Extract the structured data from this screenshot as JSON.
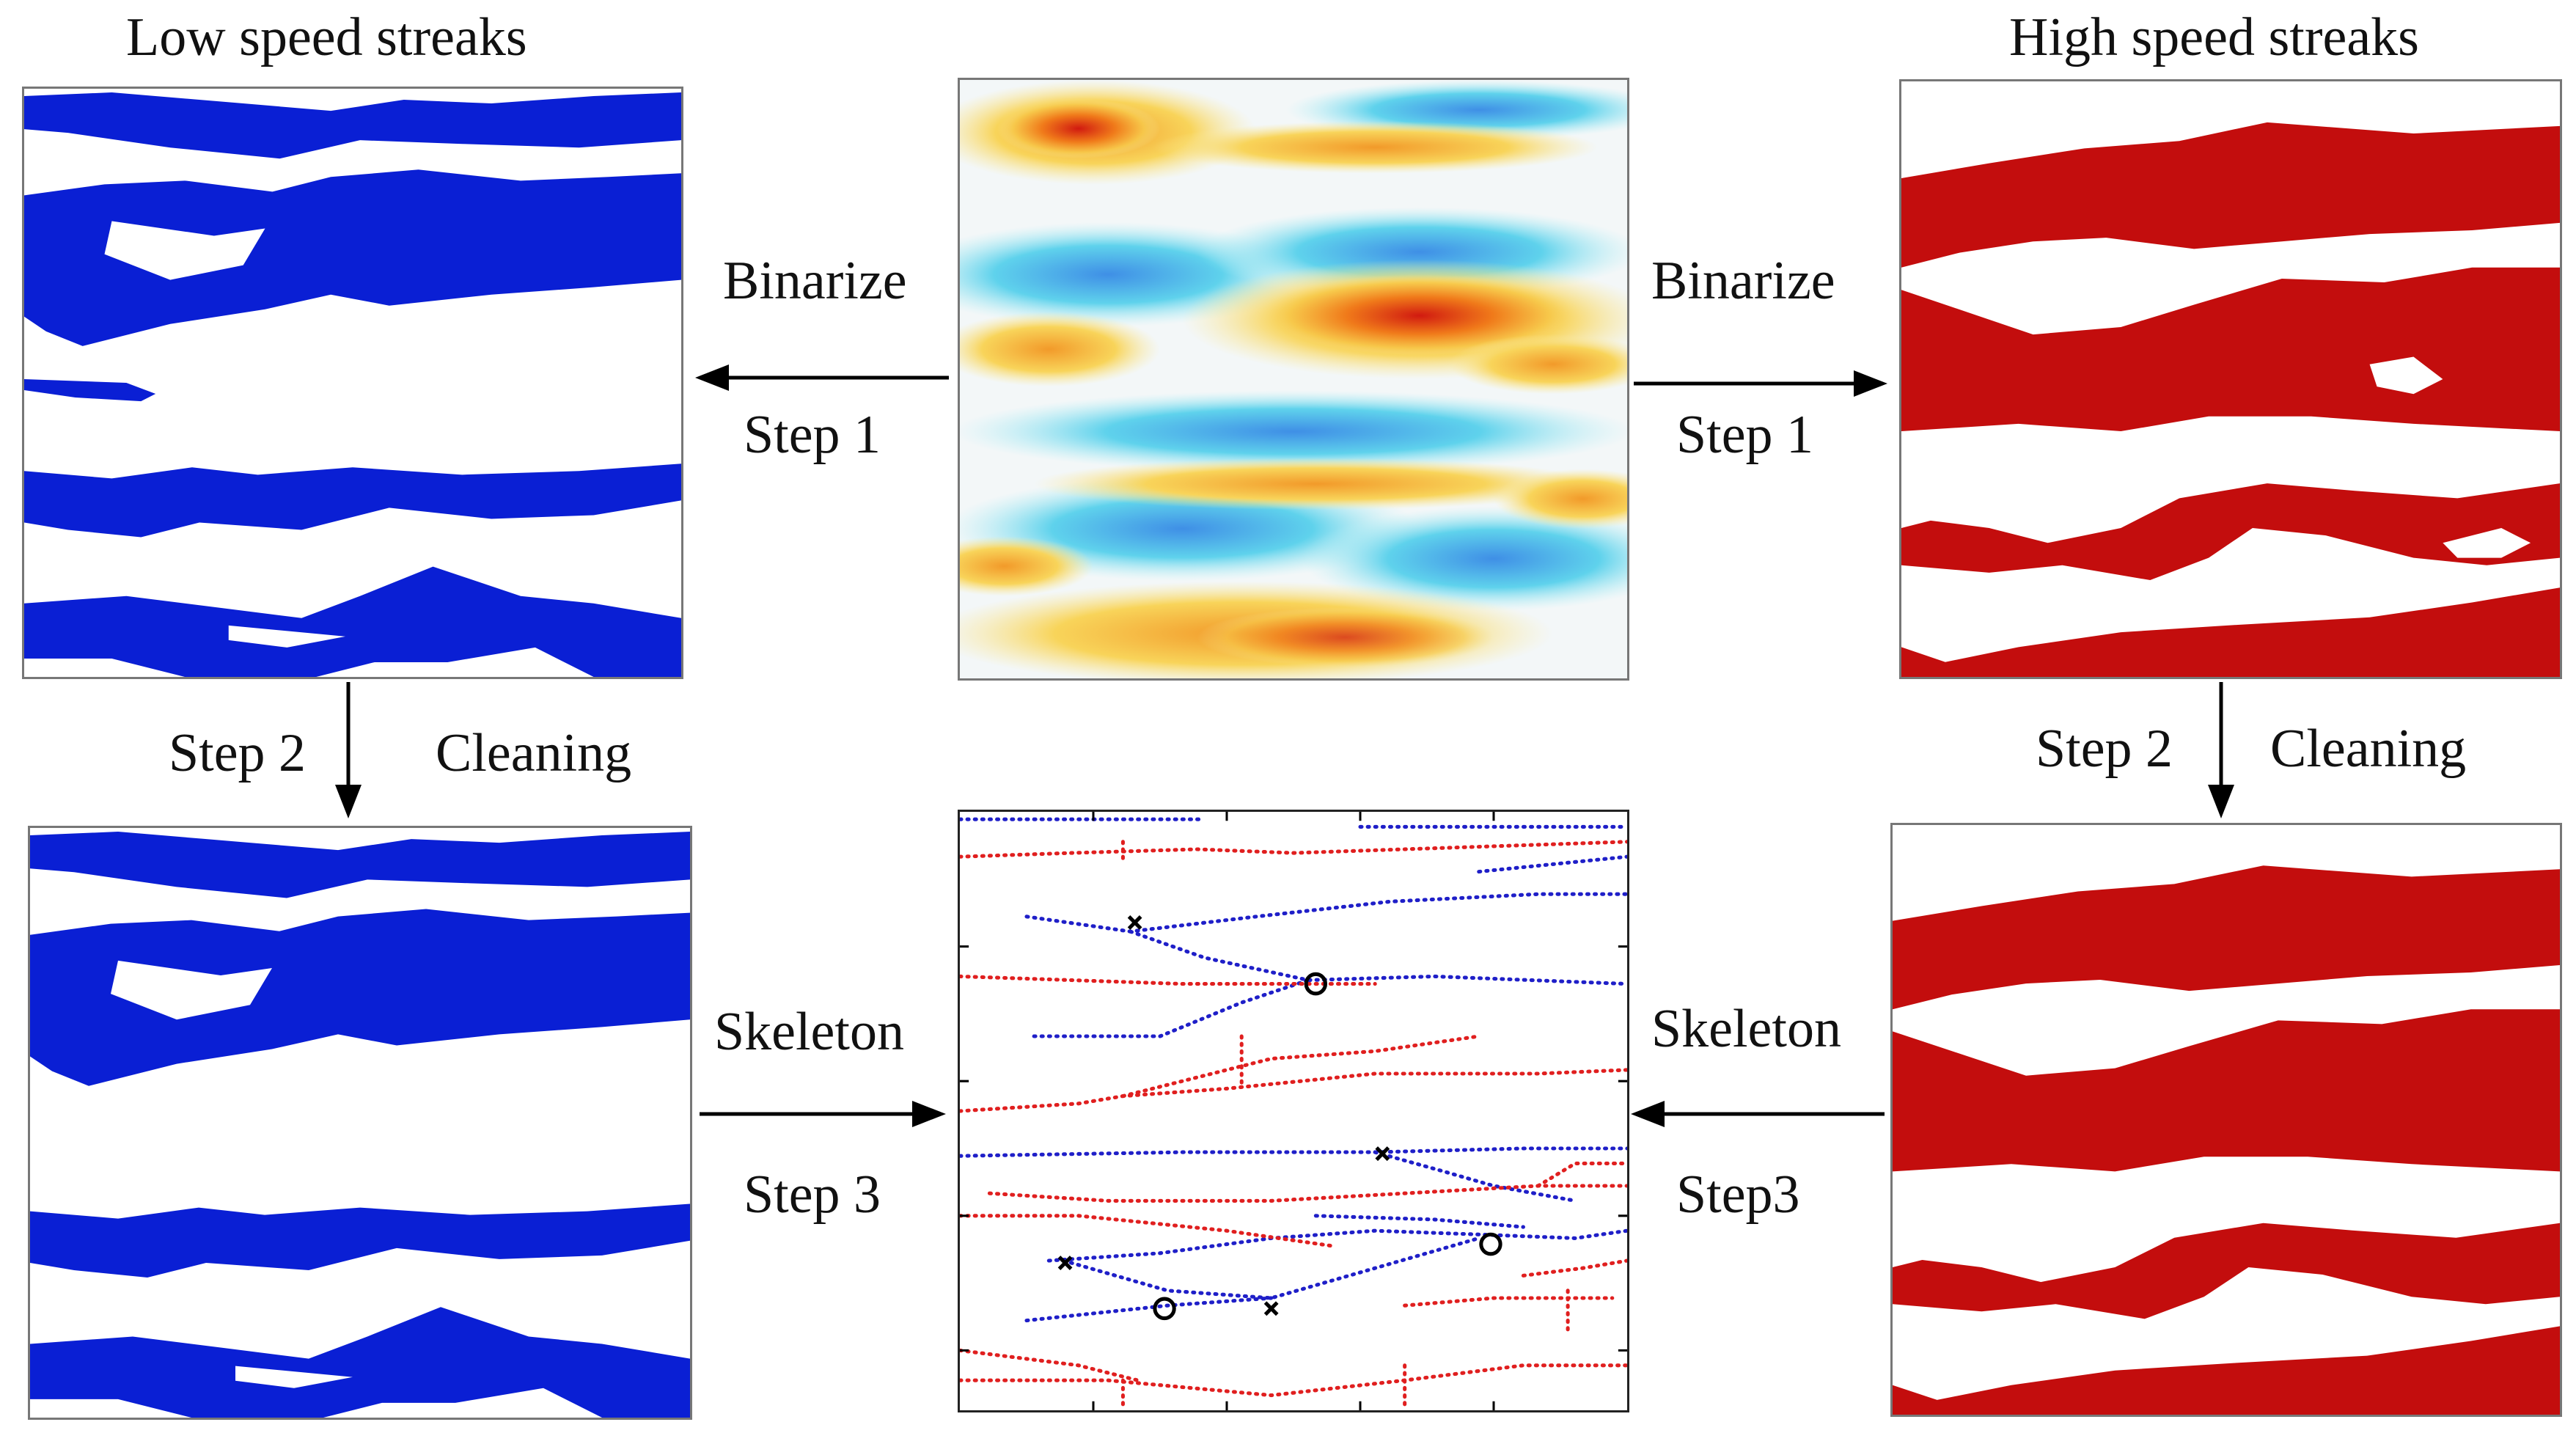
{
  "titles": {
    "low": "Low speed streaks",
    "high": "High speed streaks"
  },
  "steps": {
    "left_binarize": "Binarize",
    "left_step1": "Step 1",
    "right_binarize": "Binarize",
    "right_step1": "Step 1",
    "left_step2": "Step 2",
    "left_cleaning": "Cleaning",
    "right_step2": "Step 2",
    "right_cleaning": "Cleaning",
    "left_skeleton": "Skeleton",
    "left_step3": "Step 3",
    "right_skeleton": "Skeleton",
    "right_step3": "Step3"
  },
  "colors": {
    "low_streak": "#0a1fd4",
    "high_streak": "#c30d0d",
    "skeleton_blue": "#1f1fc8",
    "skeleton_red": "#e01f1f",
    "arrow": "#000000"
  },
  "markers": {
    "branch": "×",
    "endpoint": "○"
  }
}
